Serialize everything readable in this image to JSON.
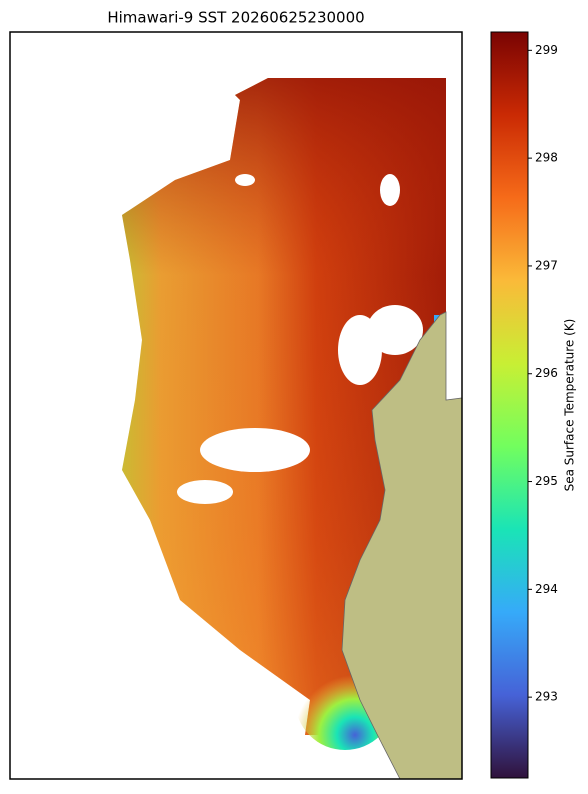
{
  "title": "Himawari-9 SST 20260625230000",
  "colorbar": {
    "label": "Sea Surface Temperature (K)",
    "lim": [
      292.25,
      299.17
    ],
    "ticks": [
      293,
      294,
      295,
      296,
      297,
      298,
      299
    ],
    "colormap": [
      "#30123b",
      "#4662d7",
      "#36aaf9",
      "#1ae4b6",
      "#72fe5e",
      "#c8ef34",
      "#faba39",
      "#f66b19",
      "#ca2a04",
      "#7a0403"
    ]
  }
}
